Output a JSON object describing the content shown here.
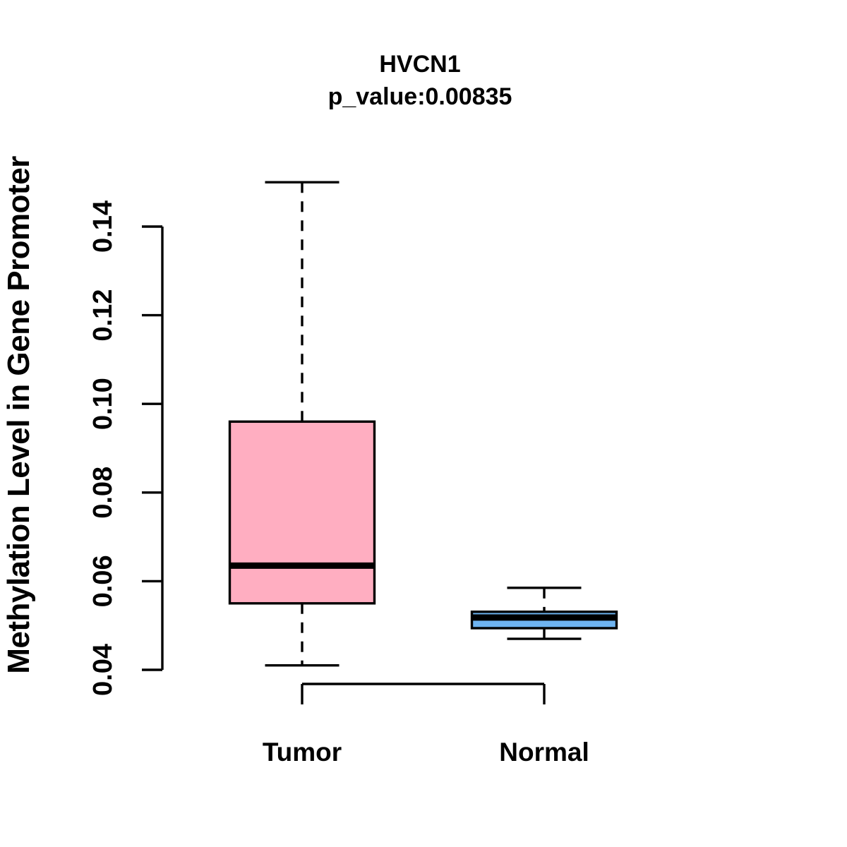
{
  "page": {
    "background_color": "#ffffff",
    "line_color": "#000000"
  },
  "chart_data": {
    "type": "boxplot",
    "title": "HVCN1",
    "subtitle": "p_value:0.00835",
    "ylabel": "Methylation Level in Gene Promoter",
    "xlabel": "",
    "categories": [
      "Tumor",
      "Normal"
    ],
    "yticks": [
      0.04,
      0.06,
      0.08,
      0.1,
      0.12,
      0.14
    ],
    "ylim": [
      0.033,
      0.152
    ],
    "grid": false,
    "legend": "none",
    "series": [
      {
        "name": "Tumor",
        "fill_color": "#FFAEC1",
        "stats": {
          "whisker_low": 0.041,
          "q1": 0.055,
          "median": 0.0635,
          "q3": 0.096,
          "whisker_high": 0.15
        }
      },
      {
        "name": "Normal",
        "fill_color": "#6EB4F1",
        "stats": {
          "whisker_low": 0.047,
          "q1": 0.0494,
          "median": 0.0518,
          "q3": 0.0531,
          "whisker_high": 0.0585
        }
      }
    ]
  }
}
